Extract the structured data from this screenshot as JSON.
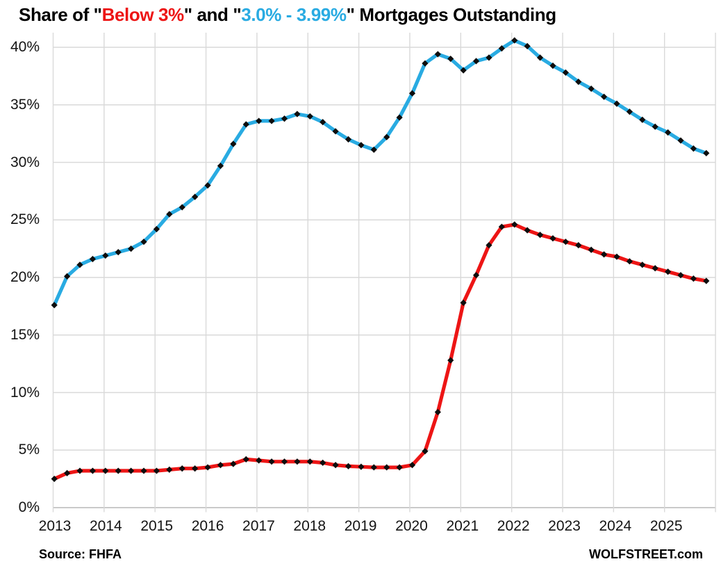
{
  "title": {
    "full": "Share of \"Below 3%\" and \"3.0% - 3.99%\" Mortgages Outstanding",
    "parts": [
      {
        "text": "Share of \"",
        "color": "#000000"
      },
      {
        "text": "Below 3%",
        "color": "#ed1515"
      },
      {
        "text": "\" and \"",
        "color": "#000000"
      },
      {
        "text": "3.0% - 3.99%",
        "color": "#29abe2"
      },
      {
        "text": "\" Mortgages Outstanding",
        "color": "#000000"
      }
    ]
  },
  "footer": {
    "source": "Source: FHFA",
    "brand": "WOLFSTREET.com"
  },
  "colors": {
    "blue_series": "#29abe2",
    "red_series": "#ed1515",
    "grid": "#d9d9d9",
    "axis_line": "#c9c9c9",
    "marker": "#0d0d0d",
    "tick_text": "#141414"
  },
  "chart_data": {
    "type": "line",
    "title": "Share of \"Below 3%\" and \"3.0% - 3.99%\" Mortgages Outstanding",
    "source": "Source: FHFA",
    "watermark": "WOLFSTREET.com",
    "grid": true,
    "legend_position": "none (series identified by colored text in title)",
    "marker_style": "black diamond on every point",
    "x_frequency": "quarterly",
    "x_tick_labels": [
      "2013",
      "2014",
      "2015",
      "2016",
      "2017",
      "2018",
      "2019",
      "2020",
      "2021",
      "2022",
      "2023",
      "2024",
      "2025"
    ],
    "y_tick_labels": [
      "0%",
      "5%",
      "10%",
      "15%",
      "20%",
      "25%",
      "30%",
      "35%",
      "40%"
    ],
    "ylabel": "",
    "xlabel": "",
    "ylim": [
      0,
      41.3
    ],
    "quarters": [
      "2013Q1",
      "2013Q2",
      "2013Q3",
      "2013Q4",
      "2014Q1",
      "2014Q2",
      "2014Q3",
      "2014Q4",
      "2015Q1",
      "2015Q2",
      "2015Q3",
      "2015Q4",
      "2016Q1",
      "2016Q2",
      "2016Q3",
      "2016Q4",
      "2017Q1",
      "2017Q2",
      "2017Q3",
      "2017Q4",
      "2018Q1",
      "2018Q2",
      "2018Q3",
      "2018Q4",
      "2019Q1",
      "2019Q2",
      "2019Q3",
      "2019Q4",
      "2020Q1",
      "2020Q2",
      "2020Q3",
      "2020Q4",
      "2021Q1",
      "2021Q2",
      "2021Q3",
      "2021Q4",
      "2022Q1",
      "2022Q2",
      "2022Q3",
      "2022Q4",
      "2023Q1",
      "2023Q2",
      "2023Q3",
      "2023Q4",
      "2024Q1",
      "2024Q2",
      "2024Q3",
      "2024Q4",
      "2025Q1",
      "2025Q2",
      "2025Q3",
      "2025Q4"
    ],
    "series": [
      {
        "name": "3.0% - 3.99%",
        "color": "#29abe2",
        "values": [
          17.6,
          20.1,
          21.1,
          21.6,
          21.9,
          22.2,
          22.5,
          23.1,
          24.2,
          25.5,
          26.1,
          27.0,
          28.0,
          29.7,
          31.6,
          33.3,
          33.6,
          33.6,
          33.8,
          34.2,
          34.0,
          33.5,
          32.7,
          32.0,
          31.5,
          31.1,
          32.2,
          33.9,
          36.0,
          38.6,
          39.4,
          39.0,
          38.0,
          38.8,
          39.1,
          39.9,
          40.6,
          40.1,
          39.1,
          38.4,
          37.8,
          37.0,
          36.4,
          35.7,
          35.1,
          34.4,
          33.7,
          33.1,
          32.6,
          31.9,
          31.2,
          30.8
        ]
      },
      {
        "name": "Below 3%",
        "color": "#ed1515",
        "values": [
          2.5,
          3.0,
          3.2,
          3.2,
          3.2,
          3.2,
          3.2,
          3.2,
          3.2,
          3.3,
          3.4,
          3.4,
          3.5,
          3.7,
          3.8,
          4.2,
          4.1,
          4.0,
          4.0,
          4.0,
          4.0,
          3.9,
          3.7,
          3.6,
          3.55,
          3.5,
          3.5,
          3.5,
          3.7,
          4.9,
          8.3,
          12.8,
          17.8,
          20.2,
          22.8,
          24.4,
          24.6,
          24.1,
          23.7,
          23.4,
          23.1,
          22.8,
          22.4,
          22.0,
          21.8,
          21.4,
          21.1,
          20.8,
          20.5,
          20.2,
          19.9,
          19.7
        ]
      }
    ]
  }
}
